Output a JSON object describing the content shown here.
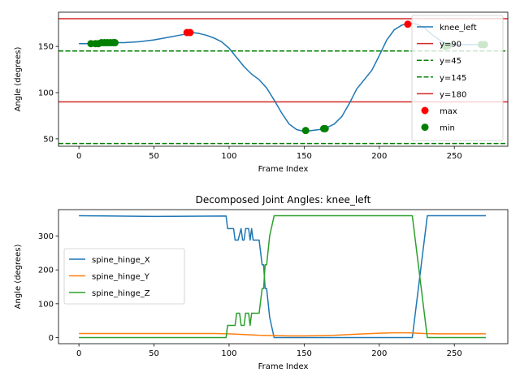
{
  "chart_data": [
    {
      "type": "line",
      "title": "",
      "xlabel": "Frame Index",
      "ylabel": "Angle (degrees)",
      "xlim": [
        -13.6,
        285.6
      ],
      "ylim": [
        42,
        187
      ],
      "xticks": [
        0,
        50,
        100,
        150,
        200,
        250
      ],
      "yticks": [
        50,
        100,
        150
      ],
      "grid": false,
      "legend_position": "upper-right",
      "series": [
        {
          "name": "knee_left",
          "color": "#1f77b4",
          "x": [
            0,
            10,
            20,
            30,
            40,
            50,
            60,
            70,
            75,
            80,
            85,
            90,
            95,
            100,
            105,
            110,
            115,
            120,
            125,
            130,
            135,
            140,
            145,
            150,
            155,
            160,
            165,
            170,
            175,
            180,
            185,
            190,
            195,
            200,
            205,
            210,
            215,
            220,
            225,
            230,
            235,
            240,
            245,
            250,
            255,
            260,
            265,
            270
          ],
          "y": [
            153,
            153,
            154,
            154,
            155,
            157,
            160,
            163,
            165,
            164,
            162,
            159,
            155,
            148,
            138,
            128,
            120,
            114,
            105,
            92,
            78,
            66,
            60,
            58,
            59,
            60,
            62,
            66,
            74,
            88,
            104,
            114,
            124,
            140,
            157,
            168,
            173,
            175,
            174,
            170,
            163,
            157,
            153,
            152,
            152,
            152,
            152,
            152
          ]
        }
      ],
      "hlines": [
        {
          "name": "y=90",
          "value": 90,
          "color": "#d62728",
          "style": "solid"
        },
        {
          "name": "y=45",
          "value": 45,
          "color": "#008000",
          "style": "dashed"
        },
        {
          "name": "y=145",
          "value": 145,
          "color": "#008000",
          "style": "dashed"
        },
        {
          "name": "y=180",
          "value": 180,
          "color": "#d62728",
          "style": "solid"
        }
      ],
      "markers": {
        "max": {
          "name": "max",
          "color": "#ff0000",
          "points": [
            [
              72,
              165
            ],
            [
              74,
              165
            ],
            [
              219,
              174
            ]
          ]
        },
        "min": {
          "name": "min",
          "color": "#008000",
          "points": [
            [
              8,
              153
            ],
            [
              11,
              153
            ],
            [
              13,
              153
            ],
            [
              15,
              154
            ],
            [
              17,
              154
            ],
            [
              19,
              154
            ],
            [
              21,
              154
            ],
            [
              23,
              154
            ],
            [
              24,
              154
            ],
            [
              151,
              59
            ],
            [
              163,
              61
            ],
            [
              164,
              61
            ],
            [
              244,
              150
            ],
            [
              246,
              151
            ],
            [
              268,
              152
            ],
            [
              270,
              152
            ]
          ]
        }
      }
    },
    {
      "type": "line",
      "title": "Decomposed Joint Angles: knee_left",
      "xlabel": "Frame Index",
      "ylabel": "Angle (degrees)",
      "xlim": [
        -13.6,
        285.6
      ],
      "ylim": [
        -18,
        378
      ],
      "xticks": [
        0,
        50,
        100,
        150,
        200,
        250
      ],
      "yticks": [
        0,
        100,
        200,
        300
      ],
      "grid": false,
      "legend_position": "center-left",
      "series": [
        {
          "name": "spine_hinge_X",
          "color": "#1f77b4",
          "x": [
            0,
            50,
            98,
            99,
            103,
            104,
            106,
            108,
            109,
            110,
            111,
            113,
            114,
            115,
            116,
            117,
            120,
            122,
            123,
            124,
            125,
            127,
            130,
            150,
            200,
            222,
            232,
            271
          ],
          "y": [
            360,
            358,
            359,
            322,
            322,
            288,
            288,
            322,
            288,
            288,
            322,
            322,
            288,
            322,
            288,
            288,
            288,
            215,
            215,
            145,
            145,
            60,
            0,
            0,
            0,
            0,
            360,
            360
          ]
        },
        {
          "name": "spine_hinge_Y",
          "color": "#ff7f0e",
          "x": [
            0,
            50,
            90,
            100,
            110,
            120,
            130,
            140,
            150,
            160,
            170,
            180,
            190,
            200,
            210,
            220,
            230,
            240,
            250,
            260,
            271
          ],
          "y": [
            12,
            12,
            12,
            11,
            9,
            7,
            6,
            5,
            5,
            6,
            7,
            9,
            11,
            13,
            14,
            14,
            12,
            11,
            11,
            11,
            11
          ]
        },
        {
          "name": "spine_hinge_Z",
          "color": "#2ca02c",
          "x": [
            0,
            50,
            98,
            99,
            104,
            105,
            107,
            108,
            110,
            111,
            113,
            114,
            115,
            116,
            117,
            120,
            122,
            123,
            124,
            125,
            127,
            130,
            150,
            200,
            222,
            232,
            271
          ],
          "y": [
            0,
            0,
            0,
            36,
            36,
            72,
            72,
            36,
            36,
            72,
            72,
            36,
            72,
            72,
            72,
            72,
            145,
            145,
            215,
            215,
            300,
            360,
            360,
            360,
            360,
            0,
            0
          ]
        }
      ]
    }
  ]
}
